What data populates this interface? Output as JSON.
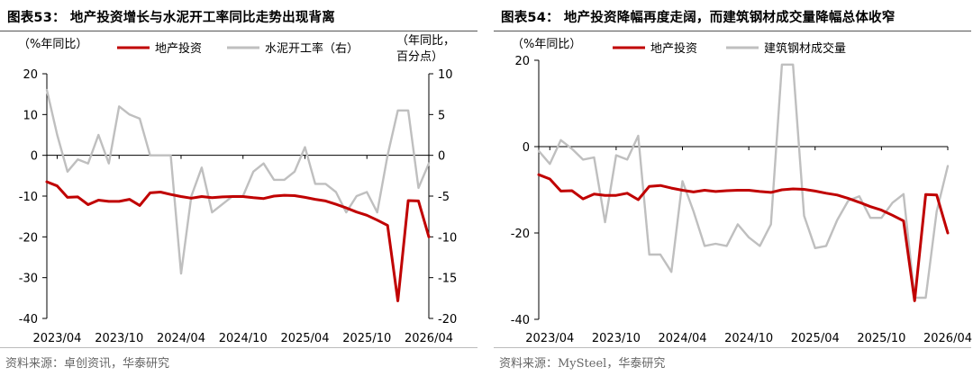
{
  "charts": {
    "left": {
      "title": "图表53： 地产投资增长与水泥开工率同比走势出现背离",
      "source": "资料来源：卓创资讯，华泰研究",
      "chart_data": {
        "type": "line",
        "title": "图表53： 地产投资增长与水泥开工率同比走势出现背离",
        "y_unit_left": "（%年同比）",
        "y_unit_right": [
          "（年同比，",
          "百分点）"
        ],
        "x_tick_labels": [
          "2023/04",
          "2023/10",
          "2024/04",
          "2024/10",
          "2025/04",
          "2025/10",
          "2026/04"
        ],
        "ylim_left": [
          -40,
          20
        ],
        "yticks_left": [
          20,
          10,
          0,
          -10,
          -20,
          -30,
          -40
        ],
        "ylim_right": [
          -20,
          10
        ],
        "yticks_right": [
          10,
          5,
          0,
          -5,
          -10,
          -15,
          -20
        ],
        "legend_position": "top",
        "grid": false,
        "x": [
          "2023/03",
          "2023/04",
          "2023/05",
          "2023/06",
          "2023/07",
          "2023/08",
          "2023/09",
          "2023/10",
          "2023/11",
          "2023/12",
          "2024/01",
          "2024/02",
          "2024/03",
          "2024/04",
          "2024/05",
          "2024/06",
          "2024/07",
          "2024/08",
          "2024/09",
          "2024/10",
          "2024/11",
          "2024/12",
          "2025/01",
          "2025/02",
          "2025/03",
          "2025/04",
          "2025/05",
          "2025/06",
          "2025/07",
          "2025/08",
          "2025/09",
          "2025/10",
          "2025/11",
          "2025/12",
          "2026/01",
          "2026/02",
          "2026/03",
          "2026/04"
        ],
        "series": [
          {
            "name": "地产投资",
            "axis": "left",
            "color": "#c00000",
            "values": [
              -6.5,
              -7.5,
              -10.3,
              -10.2,
              -12.1,
              -11,
              -11.3,
              -11.3,
              -10.8,
              -12.3,
              -9.2,
              -9,
              -9.6,
              -10.1,
              -10.5,
              -10.1,
              -10.4,
              -10.2,
              -10.1,
              -10.1,
              -10.4,
              -10.6,
              -10,
              -9.8,
              -9.9,
              -10.3,
              -10.8,
              -11.2,
              -12,
              -12.9,
              -13.9,
              -14.7,
              -15.9,
              -17.2,
              -35.7,
              -11.1,
              -11.2,
              -20
            ]
          },
          {
            "name": "水泥开工率（右）",
            "axis": "right",
            "color": "#bfbfbf",
            "values": [
              8,
              2.5,
              -2,
              -0.5,
              -1,
              2.5,
              -1,
              6,
              5,
              4.5,
              0,
              0,
              0,
              -14.5,
              -5,
              -1.5,
              -7,
              -6,
              -5,
              -5,
              -2,
              -1,
              -3,
              -3,
              -2,
              1,
              -3.5,
              -3.5,
              -4.5,
              -7,
              -5,
              -4.5,
              -7,
              0,
              5.5,
              5.5,
              -4,
              -1
            ]
          }
        ]
      }
    },
    "right": {
      "title": "图表54： 地产投资降幅再度走阔，而建筑钢材成交量降幅总体收窄",
      "source": "资料来源：MySteel，华泰研究",
      "chart_data": {
        "type": "line",
        "title": "图表54： 地产投资降幅再度走阔，而建筑钢材成交量降幅总体收窄",
        "y_unit_left": "（%年同比）",
        "x_tick_labels": [
          "2023/04",
          "2023/10",
          "2024/04",
          "2024/10",
          "2025/04",
          "2025/10",
          "2026/04"
        ],
        "ylim_left": [
          -40,
          20
        ],
        "yticks_left": [
          20,
          0,
          -20,
          -40
        ],
        "legend_position": "top",
        "grid": false,
        "x": [
          "2023/03",
          "2023/04",
          "2023/05",
          "2023/06",
          "2023/07",
          "2023/08",
          "2023/09",
          "2023/10",
          "2023/11",
          "2023/12",
          "2024/01",
          "2024/02",
          "2024/03",
          "2024/04",
          "2024/05",
          "2024/06",
          "2024/07",
          "2024/08",
          "2024/09",
          "2024/10",
          "2024/11",
          "2024/12",
          "2025/01",
          "2025/02",
          "2025/03",
          "2025/04",
          "2025/05",
          "2025/06",
          "2025/07",
          "2025/08",
          "2025/09",
          "2025/10",
          "2025/11",
          "2025/12",
          "2026/01",
          "2026/02",
          "2026/03",
          "2026/04"
        ],
        "series": [
          {
            "name": "地产投资",
            "color": "#c00000",
            "values": [
              -6.5,
              -7.5,
              -10.3,
              -10.2,
              -12.1,
              -11,
              -11.3,
              -11.3,
              -10.8,
              -12.3,
              -9.2,
              -9,
              -9.6,
              -10.1,
              -10.5,
              -10.1,
              -10.4,
              -10.2,
              -10.1,
              -10.1,
              -10.4,
              -10.6,
              -10,
              -9.8,
              -9.9,
              -10.3,
              -10.8,
              -11.2,
              -12,
              -12.9,
              -13.9,
              -14.7,
              -15.9,
              -17.2,
              -35.7,
              -11.1,
              -11.2,
              -20
            ]
          },
          {
            "name": "建筑钢材成交量",
            "color": "#bfbfbf",
            "values": [
              -1,
              -4,
              1.5,
              -0.5,
              -3,
              -2.5,
              -17.5,
              -2,
              -3,
              2.5,
              -25,
              -25,
              -29,
              -8,
              -15,
              -23,
              -22.5,
              -23,
              -18,
              -21,
              -23,
              -18,
              19,
              19,
              -16,
              -23.5,
              -23,
              -17,
              -12.5,
              -11.5,
              -16.5,
              -16.5,
              -13,
              -11,
              -35,
              -35,
              -15,
              -4.5
            ]
          }
        ]
      }
    }
  }
}
